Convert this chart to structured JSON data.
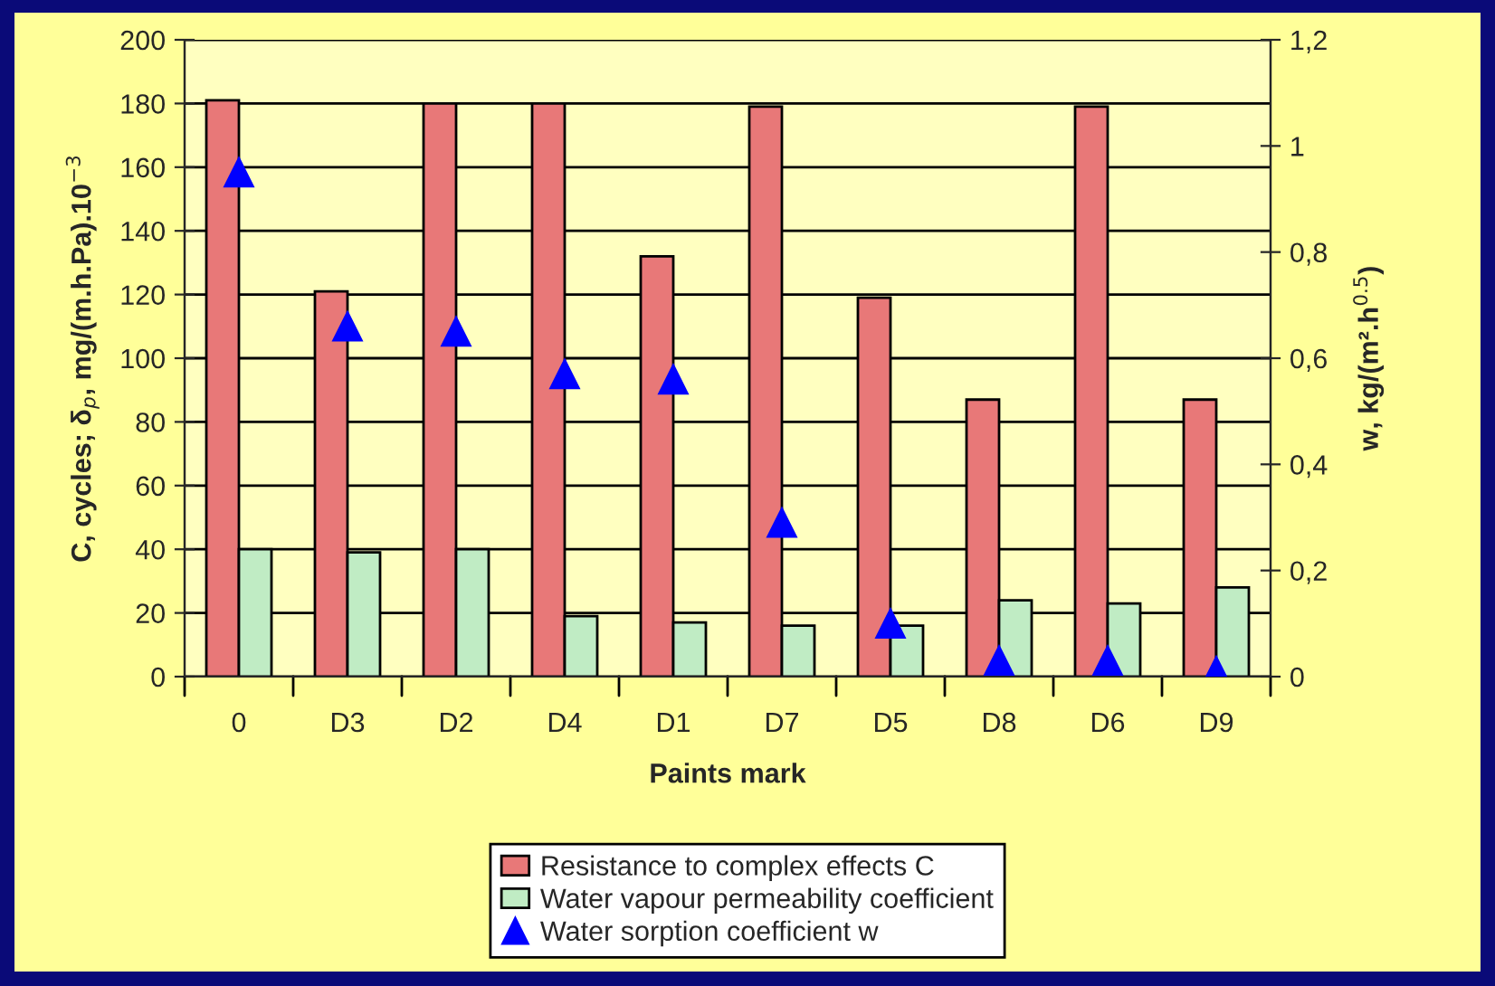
{
  "chart_data": {
    "type": "bar",
    "xlabel": "Paints mark",
    "ylabel": "C, cycles; δ$_{p}$, mg/(m.h.Pa).10$^{−3}$",
    "y2label": "w, kg/(m².h$^{0.5}$)",
    "categories": [
      "0",
      "D3",
      "D2",
      "D4",
      "D1",
      "D7",
      "D5",
      "D8",
      "D6",
      "D9"
    ],
    "series": [
      {
        "name": "Resistance to complex effects C",
        "color": "#e87878",
        "values": [
          181,
          121,
          180,
          180,
          132,
          179,
          119,
          87,
          179,
          87
        ]
      },
      {
        "name": "Water vapour permeability coefficient",
        "color": "#c0ecc4",
        "values": [
          40,
          39,
          40,
          19,
          17,
          16,
          16,
          24,
          23,
          28
        ]
      },
      {
        "name": "Water sorption coefficient w",
        "type": "scatter",
        "axis": "y2",
        "color": "#0000ff",
        "marker": "triangle",
        "values": [
          0.95,
          0.66,
          0.65,
          0.57,
          0.56,
          0.29,
          0.1,
          0.03,
          0.03,
          0.01
        ]
      }
    ],
    "ylim": [
      0,
      200
    ],
    "yticks": [
      0,
      20,
      40,
      60,
      80,
      100,
      120,
      140,
      160,
      180,
      200
    ],
    "y2lim": [
      0,
      1.2
    ],
    "y2ticks": [
      0,
      {
        "value": 0.2,
        "label": "0,2"
      },
      {
        "value": 0.4,
        "label": "0,4"
      },
      {
        "value": 0.6,
        "label": "0,6"
      },
      {
        "value": 0.8,
        "label": "0,8"
      },
      1,
      {
        "value": 1.2,
        "label": "1,2"
      }
    ],
    "grid": "y",
    "legend": "bottom"
  }
}
